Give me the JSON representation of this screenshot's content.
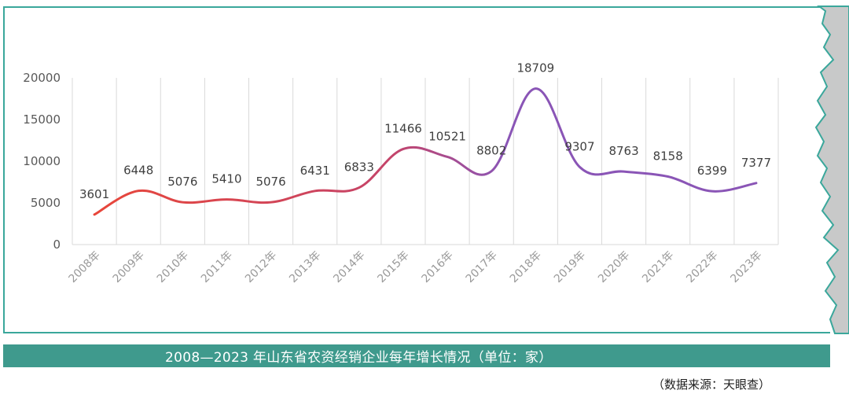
{
  "caption": "2008—2023 年山东省农资经销企业每年增长情况（单位：家）",
  "source": "（数据来源：天眼查）",
  "colors": {
    "frame": "#3aa79b",
    "caption_bg": "#3f9a8d",
    "line_start": "#e8463a",
    "line_end": "#8a55b6"
  },
  "chart_data": {
    "type": "line",
    "smooth": true,
    "categories": [
      "2008年",
      "2009年",
      "2010年",
      "2011年",
      "2012年",
      "2013年",
      "2014年",
      "2015年",
      "2016年",
      "2017年",
      "2018年",
      "2019年",
      "2020年",
      "2021年",
      "2022年",
      "2023年"
    ],
    "x_tick_labels": [
      "2008年",
      "2009年",
      "2010年",
      "2011年",
      "2012年",
      "2013年",
      "2014年",
      "2015年",
      "2016年",
      "2017年",
      "2018年",
      "2019年",
      "2020年",
      "2021年",
      "2022年",
      "2023年"
    ],
    "values": [
      3601,
      6448,
      5076,
      5410,
      5076,
      6431,
      6833,
      11466,
      10521,
      8802,
      18709,
      9307,
      8763,
      8158,
      6399,
      7377
    ],
    "data_labels": [
      "3601",
      "6448",
      "5076",
      "5410",
      "5076",
      "6431",
      "6833",
      "11466",
      "10521",
      "8802",
      "18709",
      "9307",
      "8763",
      "8158",
      "6399",
      "7377"
    ],
    "y_ticks": [
      0,
      5000,
      10000,
      15000,
      20000
    ],
    "y_tick_labels": [
      "0",
      "5000",
      "10000",
      "15000",
      "20000"
    ],
    "ylim": [
      0,
      20000
    ],
    "grid": "vertical",
    "legend": "none",
    "title": "",
    "xlabel": "",
    "ylabel": ""
  }
}
